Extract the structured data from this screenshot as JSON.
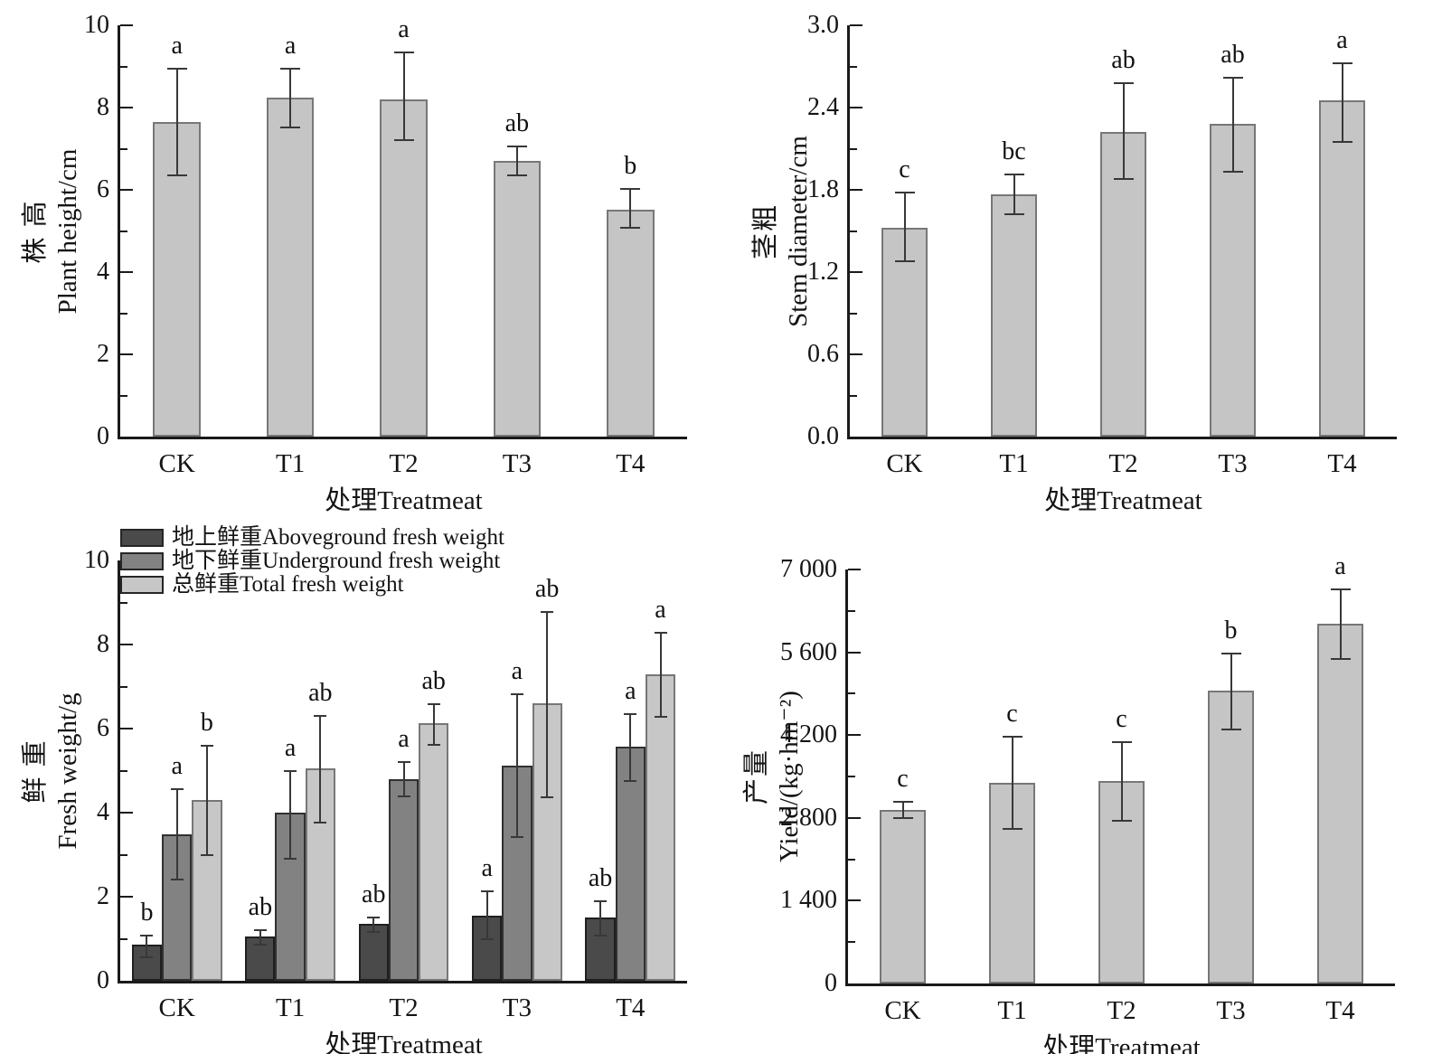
{
  "figure": {
    "background": "#ffffff",
    "axis_color": "#1a1a1a",
    "error_bar_color": "#383838",
    "text_color": "#141414"
  },
  "chart_data": [
    {
      "id": "plant-height",
      "type": "bar",
      "title": "",
      "ylabel_cn": "株 高",
      "ylabel_en": "Plant height/cm",
      "xlabel": "处理Treatmeat",
      "categories": [
        "CK",
        "T1",
        "T2",
        "T3",
        "T4"
      ],
      "ylim": [
        0,
        10
      ],
      "yticks": [
        0,
        2,
        4,
        6,
        8,
        10
      ],
      "ytick_labels": [
        "0",
        "2",
        "4",
        "6",
        "8",
        "10"
      ],
      "minor_step": 1,
      "grid": false,
      "legend_position": "none",
      "series": [
        {
          "name": "Plant height",
          "fill": "#c5c5c5",
          "border": "#777777",
          "values": [
            7.65,
            8.25,
            8.2,
            6.7,
            5.52
          ],
          "err_plus": [
            1.3,
            0.7,
            1.15,
            0.36,
            0.51
          ],
          "err_minus": [
            1.3,
            0.73,
            1.0,
            0.34,
            0.44
          ],
          "letters": [
            "a",
            "a",
            "a",
            "ab",
            "b"
          ]
        }
      ]
    },
    {
      "id": "stem-diameter",
      "type": "bar",
      "title": "",
      "ylabel_cn": "茎粗",
      "ylabel_en": "Stem diameter/cm",
      "xlabel": "处理Treatmeat",
      "categories": [
        "CK",
        "T1",
        "T2",
        "T3",
        "T4"
      ],
      "ylim": [
        0,
        3
      ],
      "yticks": [
        0,
        0.6,
        1.2,
        1.8,
        2.4,
        3.0
      ],
      "ytick_labels": [
        "0.0",
        "0.6",
        "1.2",
        "1.8",
        "2.4",
        "3.0"
      ],
      "minor_step": 0.3,
      "grid": false,
      "legend_position": "none",
      "series": [
        {
          "name": "Stem diameter",
          "fill": "#c5c5c5",
          "border": "#777777",
          "values": [
            1.52,
            1.77,
            2.22,
            2.28,
            2.45
          ],
          "err_plus": [
            0.26,
            0.14,
            0.36,
            0.34,
            0.27
          ],
          "err_minus": [
            0.24,
            0.15,
            0.34,
            0.35,
            0.3
          ],
          "letters": [
            "c",
            "bc",
            "ab",
            "ab",
            "a"
          ]
        }
      ]
    },
    {
      "id": "fresh-weight",
      "type": "bar",
      "title": "",
      "ylabel_cn": "鲜 重",
      "ylabel_en": "Fresh weight/g",
      "xlabel": "处理Treatmeat",
      "categories": [
        "CK",
        "T1",
        "T2",
        "T3",
        "T4"
      ],
      "ylim": [
        0,
        10
      ],
      "yticks": [
        0,
        2,
        4,
        6,
        8,
        10
      ],
      "ytick_labels": [
        "0",
        "2",
        "4",
        "6",
        "8",
        "10"
      ],
      "minor_step": 1,
      "grid": false,
      "legend_position": "top-left",
      "legend": {
        "items": [
          {
            "label": "地上鲜重Aboveground fresh weight",
            "color": "#4a4a4a"
          },
          {
            "label": "地下鲜重Underground fresh weight",
            "color": "#828282"
          },
          {
            "label": "总鲜重Total fresh weight",
            "color": "#c7c7c7"
          }
        ]
      },
      "series": [
        {
          "name": "地上鲜重Aboveground fresh weight",
          "fill": "#4a4a4a",
          "border": "#1f1f1f",
          "values": [
            0.85,
            1.05,
            1.35,
            1.55,
            1.5
          ],
          "err_plus": [
            0.22,
            0.16,
            0.16,
            0.57,
            0.4
          ],
          "err_minus": [
            0.3,
            0.18,
            0.18,
            0.55,
            0.42
          ],
          "letters": [
            "b",
            "ab",
            "ab",
            "a",
            "ab"
          ]
        },
        {
          "name": "地下鲜重Underground fresh weight",
          "fill": "#828282",
          "border": "#303030",
          "values": [
            3.48,
            4.0,
            4.8,
            5.12,
            5.58
          ],
          "err_plus": [
            1.08,
            1.0,
            0.4,
            1.7,
            0.76
          ],
          "err_minus": [
            1.08,
            1.1,
            0.42,
            1.7,
            0.82
          ],
          "letters": [
            "a",
            "a",
            "a",
            "a",
            "a"
          ]
        },
        {
          "name": "总鲜重Total fresh weight",
          "fill": "#c7c7c7",
          "border": "#777777",
          "values": [
            4.3,
            5.05,
            6.12,
            6.6,
            7.28
          ],
          "err_plus": [
            1.3,
            1.25,
            0.45,
            2.18,
            1.0
          ],
          "err_minus": [
            1.32,
            1.28,
            0.5,
            2.24,
            1.0
          ],
          "letters": [
            "b",
            "ab",
            "ab",
            "ab",
            "a"
          ]
        }
      ]
    },
    {
      "id": "yield",
      "type": "bar",
      "title": "",
      "ylabel_cn": "产量",
      "ylabel_en": "Yield/(kg·hm⁻²)",
      "xlabel": "处理Treatmeat",
      "categories": [
        "CK",
        "T1",
        "T2",
        "T3",
        "T4"
      ],
      "ylim": [
        0,
        7000
      ],
      "yticks": [
        0,
        1400,
        2800,
        4200,
        5600,
        7000
      ],
      "ytick_labels": [
        "0",
        "1 400",
        "2 800",
        "4 200",
        "5 600",
        "7 000"
      ],
      "minor_step": 700,
      "grid": false,
      "legend_position": "none",
      "series": [
        {
          "name": "Yield",
          "fill": "#c5c5c5",
          "border": "#777777",
          "values": [
            2940,
            3390,
            3420,
            4950,
            6090
          ],
          "err_plus": [
            130,
            790,
            660,
            630,
            580
          ],
          "err_minus": [
            140,
            780,
            670,
            660,
            600
          ],
          "letters": [
            "c",
            "c",
            "c",
            "b",
            "a"
          ]
        }
      ]
    }
  ]
}
